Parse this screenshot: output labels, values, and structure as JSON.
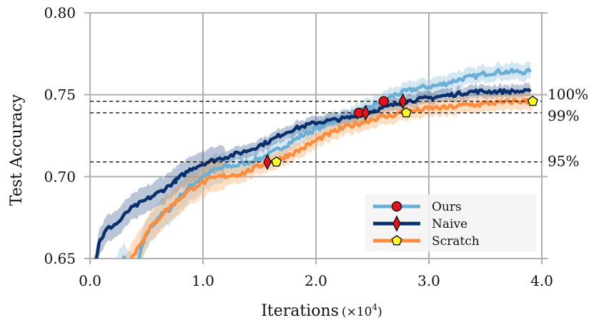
{
  "chart_data": {
    "type": "line",
    "xlabel": "Iterations",
    "xlabel_unit": "(×10",
    "xlabel_exp": "4",
    "xlabel_close": ")",
    "ylabel": "Test Accuracy",
    "xlim": [
      0.0,
      4.0
    ],
    "ylim": [
      0.65,
      0.8
    ],
    "xticks": [
      0.0,
      1.0,
      2.0,
      3.0,
      4.0
    ],
    "xtick_labels": [
      "0.0",
      "1.0",
      "2.0",
      "3.0",
      "4.0"
    ],
    "yticks": [
      0.65,
      0.7,
      0.75,
      0.8
    ],
    "ytick_labels": [
      "0.65",
      "0.70",
      "0.75",
      "0.80"
    ],
    "grid": true,
    "legend_position": "bottom-right",
    "reference_lines": [
      {
        "label": "100%",
        "y": 0.746
      },
      {
        "label": "99%",
        "y": 0.739
      },
      {
        "label": "95%",
        "y": 0.709
      }
    ],
    "series": [
      {
        "name": "Ours",
        "color": "#6baed6",
        "marker": "circle",
        "marker_color": "#e8101a",
        "x": [
          0.18,
          0.25,
          0.3,
          0.4,
          0.45,
          0.5,
          0.6,
          0.7,
          0.8,
          0.9,
          1.0,
          1.1,
          1.2,
          1.3,
          1.4,
          1.5,
          1.6,
          1.7,
          1.8,
          1.9,
          2.0,
          2.1,
          2.2,
          2.3,
          2.4,
          2.5,
          2.6,
          2.7,
          2.8,
          2.9,
          3.0,
          3.1,
          3.2,
          3.3,
          3.4,
          3.5,
          3.6,
          3.7,
          3.8,
          3.9
        ],
        "y": [
          0.63,
          0.645,
          0.65,
          0.64,
          0.655,
          0.665,
          0.675,
          0.68,
          0.688,
          0.695,
          0.7,
          0.704,
          0.706,
          0.707,
          0.709,
          0.711,
          0.714,
          0.718,
          0.722,
          0.726,
          0.729,
          0.732,
          0.735,
          0.737,
          0.74,
          0.743,
          0.747,
          0.75,
          0.752,
          0.754,
          0.755,
          0.756,
          0.758,
          0.76,
          0.761,
          0.763,
          0.764,
          0.764,
          0.764,
          0.764
        ],
        "markers": [
          {
            "x": 2.38,
            "y": 0.739
          },
          {
            "x": 2.6,
            "y": 0.746
          }
        ]
      },
      {
        "name": "Naive",
        "color": "#08306b",
        "marker": "diamond",
        "marker_color": "#e8101a",
        "x": [
          0.03,
          0.08,
          0.15,
          0.25,
          0.35,
          0.45,
          0.55,
          0.65,
          0.75,
          0.8,
          0.9,
          1.0,
          1.1,
          1.2,
          1.3,
          1.4,
          1.5,
          1.6,
          1.7,
          1.8,
          1.9,
          2.0,
          2.1,
          2.2,
          2.3,
          2.4,
          2.5,
          2.6,
          2.7,
          2.8,
          2.9,
          3.0,
          3.1,
          3.2,
          3.3,
          3.4,
          3.5,
          3.6,
          3.7,
          3.8,
          3.9
        ],
        "y": [
          0.64,
          0.66,
          0.668,
          0.672,
          0.68,
          0.684,
          0.688,
          0.692,
          0.697,
          0.7,
          0.705,
          0.708,
          0.71,
          0.712,
          0.714,
          0.716,
          0.719,
          0.722,
          0.726,
          0.729,
          0.731,
          0.733,
          0.734,
          0.735,
          0.736,
          0.738,
          0.74,
          0.742,
          0.744,
          0.746,
          0.747,
          0.748,
          0.749,
          0.75,
          0.751,
          0.752,
          0.752,
          0.752,
          0.752,
          0.752,
          0.752
        ],
        "markers": [
          {
            "x": 1.57,
            "y": 0.709
          },
          {
            "x": 2.44,
            "y": 0.739
          },
          {
            "x": 2.77,
            "y": 0.746
          }
        ]
      },
      {
        "name": "Scratch",
        "color": "#fd8d3c",
        "marker": "pentagon",
        "marker_color": "#ffff22",
        "x": [
          0.28,
          0.35,
          0.45,
          0.55,
          0.65,
          0.75,
          0.85,
          0.95,
          1.05,
          1.15,
          1.25,
          1.35,
          1.45,
          1.55,
          1.65,
          1.75,
          1.85,
          1.95,
          2.05,
          2.15,
          2.25,
          2.35,
          2.45,
          2.55,
          2.65,
          2.75,
          2.85,
          2.95,
          3.05,
          3.15,
          3.25,
          3.35,
          3.45,
          3.55,
          3.65,
          3.75,
          3.85,
          3.92
        ],
        "y": [
          0.638,
          0.648,
          0.66,
          0.67,
          0.678,
          0.684,
          0.69,
          0.695,
          0.698,
          0.7,
          0.701,
          0.702,
          0.705,
          0.708,
          0.71,
          0.713,
          0.716,
          0.72,
          0.724,
          0.727,
          0.73,
          0.732,
          0.734,
          0.736,
          0.737,
          0.739,
          0.74,
          0.741,
          0.742,
          0.742,
          0.743,
          0.744,
          0.744,
          0.745,
          0.745,
          0.746,
          0.746,
          0.746
        ],
        "markers": [
          {
            "x": 1.65,
            "y": 0.709
          },
          {
            "x": 2.8,
            "y": 0.739
          },
          {
            "x": 3.92,
            "y": 0.746
          }
        ]
      }
    ]
  }
}
